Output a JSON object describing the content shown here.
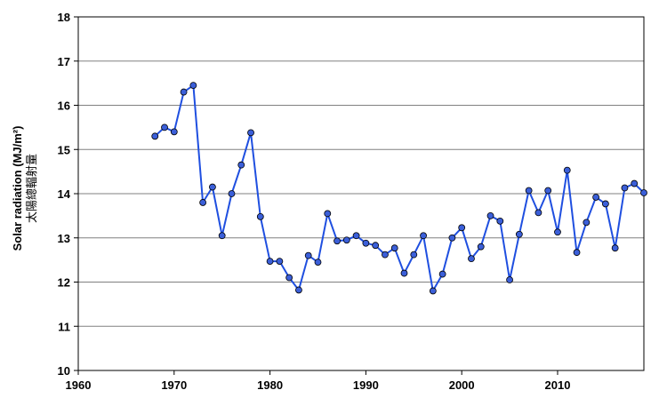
{
  "chart_data": {
    "type": "line",
    "title": "",
    "xlabel": "",
    "ylabel": "Solar radiation (MJ/m²)",
    "ylabel_zh": "太陽總輻射量",
    "xlim": [
      1960,
      2019
    ],
    "ylim": [
      10,
      18
    ],
    "x_ticks": [
      1960,
      1970,
      1980,
      1990,
      2000,
      2010
    ],
    "y_ticks": [
      10,
      11,
      12,
      13,
      14,
      15,
      16,
      17,
      18
    ],
    "grid": "horizontal",
    "legend": "none",
    "series": [
      {
        "color": "#1f4fe0",
        "marker_color": "#3b5fd9",
        "x": [
          1968,
          1969,
          1970,
          1971,
          1972,
          1973,
          1974,
          1975,
          1976,
          1977,
          1978,
          1979,
          1980,
          1981,
          1982,
          1983,
          1984,
          1985,
          1986,
          1987,
          1988,
          1989,
          1990,
          1991,
          1992,
          1993,
          1994,
          1995,
          1996,
          1997,
          1998,
          1999,
          2000,
          2001,
          2002,
          2003,
          2004,
          2005,
          2006,
          2007,
          2008,
          2009,
          2010,
          2011,
          2012,
          2013,
          2014,
          2015,
          2016,
          2017,
          2018,
          2019
        ],
        "y": [
          15.3,
          15.5,
          15.4,
          16.3,
          16.45,
          13.8,
          14.15,
          13.05,
          14.0,
          14.65,
          15.38,
          13.48,
          12.47,
          12.47,
          12.1,
          11.82,
          12.6,
          12.45,
          13.55,
          12.93,
          12.95,
          13.05,
          12.88,
          12.83,
          12.62,
          12.77,
          12.2,
          12.62,
          13.05,
          11.8,
          12.18,
          13.0,
          13.23,
          12.53,
          12.8,
          13.5,
          13.38,
          12.05,
          13.08,
          14.07,
          13.57,
          14.07,
          13.13,
          14.53,
          12.67,
          13.35,
          13.92,
          13.77,
          12.77,
          14.13,
          14.23,
          14.02
        ]
      }
    ]
  }
}
